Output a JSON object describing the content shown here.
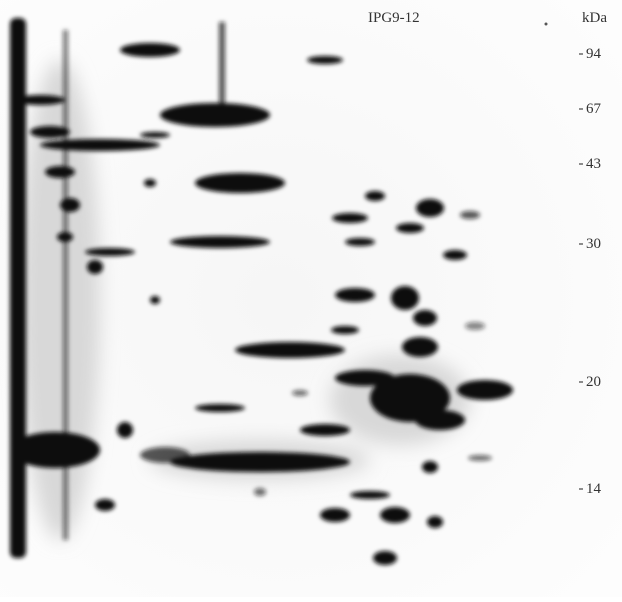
{
  "gel_label": "IPG9-12",
  "unit": "kDa",
  "markers": [
    "94",
    "67",
    "43",
    "30",
    "20",
    "14"
  ]
}
